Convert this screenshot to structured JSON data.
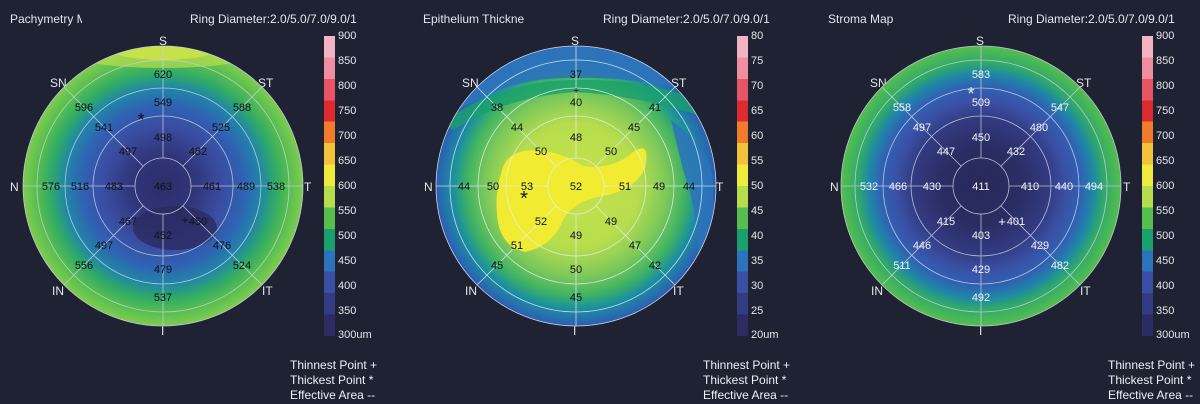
{
  "maps": [
    {
      "title": "Pachymetry M",
      "ring_info": "Ring Diameter:2.0/5.0/7.0/9.0/1",
      "directions": {
        "top": "S",
        "top_left": "SN",
        "top_right": "ST",
        "left": "N",
        "right": "T",
        "bottom_left": "IN",
        "bottom_right": "IT",
        "bottom": "I"
      },
      "values": {
        "center": "463",
        "r2": [
          "498",
          "482",
          "461",
          "450",
          "452",
          "467",
          "483",
          "497"
        ],
        "r3": [
          "549",
          "525",
          "489",
          "476",
          "479",
          "497",
          "516",
          "541"
        ],
        "r4": [
          "620",
          "588",
          "538",
          "524",
          "537",
          "556",
          "576",
          "596"
        ]
      },
      "legend": [
        "900",
        "850",
        "800",
        "750",
        "700",
        "650",
        "600",
        "550",
        "500",
        "450",
        "400",
        "350",
        "300um"
      ],
      "legend_colors": [
        "#f4b3c1",
        "#ef8ea0",
        "#e75565",
        "#dc2b2f",
        "#f07b2a",
        "#f2c23a",
        "#eeea3e",
        "#b6dd4e",
        "#55be4e",
        "#1aa06b",
        "#2d73bb",
        "#3a4fa3",
        "#323c83",
        "#2a2c63"
      ],
      "notes": [
        "Thinnest Point +",
        "Thickest Point *",
        "Effective Area --"
      ]
    },
    {
      "title": "Epithelium Thickne",
      "ring_info": "Ring Diameter:2.0/5.0/7.0/9.0/1",
      "directions": {
        "top": "S",
        "top_left": "SN",
        "top_right": "ST",
        "left": "N",
        "right": "T",
        "bottom_left": "IN",
        "bottom_right": "IT",
        "bottom": "I"
      },
      "values": {
        "center": "52",
        "r2": [
          "48",
          "50",
          "51",
          "49",
          "49",
          "52",
          "53",
          "50"
        ],
        "r3": [
          "40",
          "45",
          "49",
          "47",
          "50",
          "51",
          "50",
          "44"
        ],
        "r4": [
          "37",
          "41",
          "44",
          "42",
          "45",
          "45",
          "44",
          "38"
        ]
      },
      "legend": [
        "80",
        "75",
        "70",
        "65",
        "60",
        "55",
        "50",
        "45",
        "40",
        "35",
        "30",
        "25",
        "20um"
      ],
      "legend_colors": [
        "#f4b3c1",
        "#ef8ea0",
        "#e75565",
        "#dc2b2f",
        "#f07b2a",
        "#f2c23a",
        "#eeea3e",
        "#b6dd4e",
        "#55be4e",
        "#1aa06b",
        "#2d73bb",
        "#3a4fa3",
        "#323c83",
        "#2a2c63"
      ],
      "notes": [
        "Thinnest Point +",
        "Thickest Point *",
        "Effective Area --"
      ]
    },
    {
      "title": "Stroma Map",
      "ring_info": "Ring Diameter:2.0/5.0/7.0/9.0/1",
      "directions": {
        "top": "S",
        "top_left": "SN",
        "top_right": "ST",
        "left": "N",
        "right": "T",
        "bottom_left": "IN",
        "bottom_right": "IT",
        "bottom": "I"
      },
      "values": {
        "center": "411",
        "r2": [
          "450",
          "432",
          "410",
          "401",
          "403",
          "415",
          "430",
          "447"
        ],
        "r3": [
          "509",
          "480",
          "440",
          "429",
          "429",
          "446",
          "466",
          "497"
        ],
        "r4": [
          "583",
          "547",
          "494",
          "482",
          "492",
          "511",
          "532",
          "558"
        ]
      },
      "legend": [
        "900",
        "850",
        "800",
        "750",
        "700",
        "650",
        "600",
        "550",
        "500",
        "450",
        "400",
        "350",
        "300um"
      ],
      "legend_colors": [
        "#f4b3c1",
        "#ef8ea0",
        "#e75565",
        "#dc2b2f",
        "#f07b2a",
        "#f2c23a",
        "#eeea3e",
        "#b6dd4e",
        "#55be4e",
        "#1aa06b",
        "#2d73bb",
        "#3a4fa3",
        "#323c83",
        "#2a2c63"
      ],
      "notes": [
        "Thinnest Point +",
        "Thickest Point *",
        "Effective Area --"
      ]
    }
  ],
  "marker_thinnest": "+",
  "marker_thickest": "*"
}
